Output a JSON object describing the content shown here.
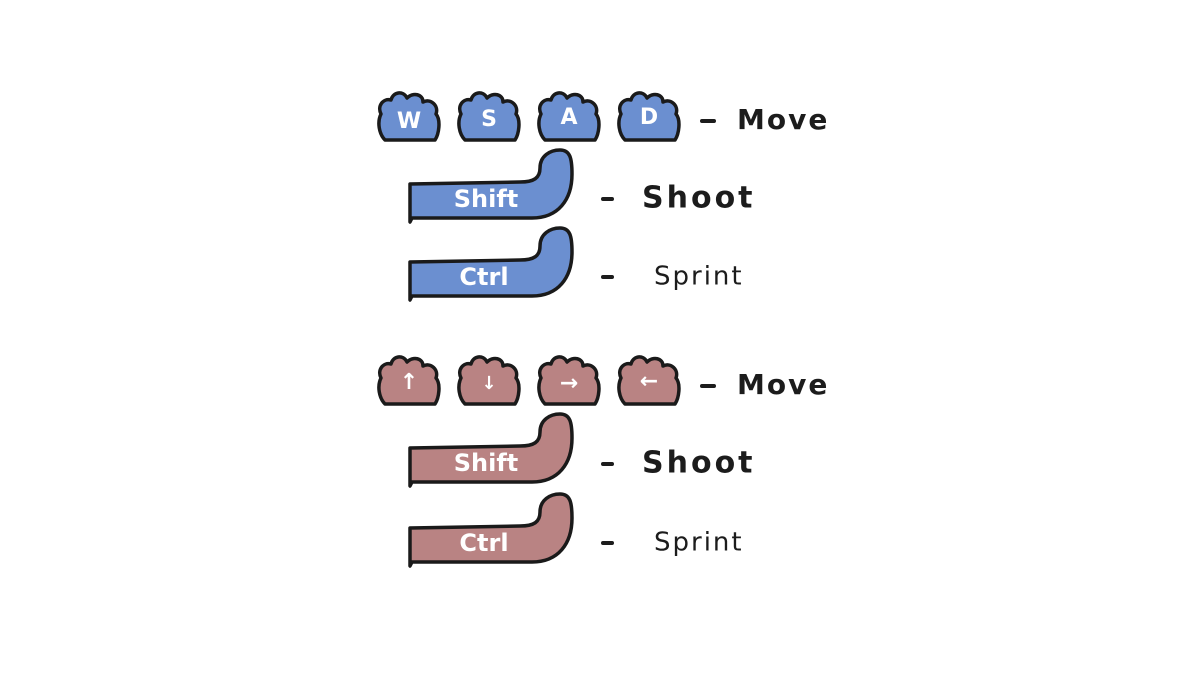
{
  "player1": {
    "color": "#6b8fd0",
    "move_keys": [
      "W",
      "S",
      "A",
      "D"
    ],
    "move_label": "Move",
    "shoot_key": "Shift",
    "shoot_label": "Shoot",
    "sprint_key": "Ctrl",
    "sprint_label": "Sprint"
  },
  "player2": {
    "color": "#b98383",
    "move_keys": [
      "↑",
      "↓",
      "→",
      "←"
    ],
    "move_key_icons": [
      "arrow-up-icon",
      "arrow-down-icon",
      "arrow-right-icon",
      "arrow-left-icon"
    ],
    "move_label": "Move",
    "shoot_key": "Shift",
    "shoot_label": "Shoot",
    "sprint_key": "Ctrl",
    "sprint_label": "Sprint"
  },
  "separator": "-",
  "outline_color": "#1a1a1a"
}
